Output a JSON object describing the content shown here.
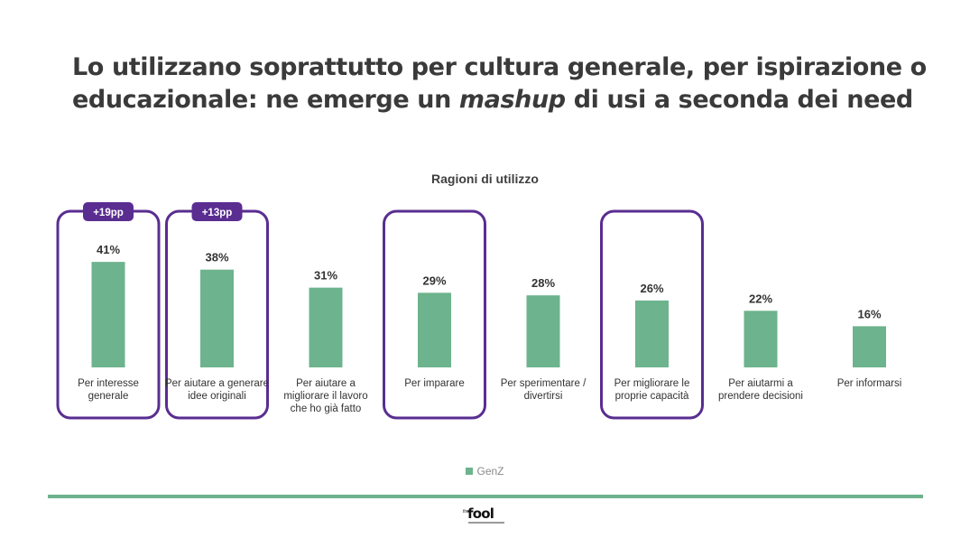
{
  "slide": {
    "title_part1": "Lo utilizzano soprattutto per cultura generale, per ispirazione o educazionale: ne emerge un ",
    "title_emphasis": "mashup",
    "title_part2": " di usi a seconda dei need"
  },
  "logo": {
    "the": "the",
    "name": "fool"
  },
  "colors": {
    "bar": "#6db38d",
    "highlight": "#5a2d91",
    "text": "#333333"
  },
  "chart_data": {
    "type": "bar",
    "title": "Ragioni di utilizzo",
    "categories": [
      "Per interesse generale",
      "Per aiutare a generare idee originali",
      "Per aiutare a migliorare il lavoro che ho già fatto",
      "Per imparare",
      "Per sperimentare / divertirsi",
      "Per migliorare le proprie capacità",
      "Per aiutarmi a prendere decisioni",
      "Per informarsi"
    ],
    "category_lines": [
      [
        "Per interesse",
        "generale"
      ],
      [
        "Per aiutare a generare",
        "idee originali"
      ],
      [
        "Per aiutare a",
        "migliorare il lavoro",
        "che ho già fatto"
      ],
      [
        "Per imparare"
      ],
      [
        "Per sperimentare /",
        "divertirsi"
      ],
      [
        "Per migliorare le",
        "proprie capacità"
      ],
      [
        "Per aiutarmi a",
        "prendere decisioni"
      ],
      [
        "Per informarsi"
      ]
    ],
    "series": [
      {
        "name": "GenZ",
        "values": [
          41,
          38,
          31,
          29,
          28,
          26,
          22,
          16
        ]
      }
    ],
    "value_labels": [
      "41%",
      "38%",
      "31%",
      "29%",
      "28%",
      "26%",
      "22%",
      "16%"
    ],
    "value_unit": "%",
    "highlighted_categories": [
      0,
      1,
      3,
      5
    ],
    "badges": [
      {
        "category": 0,
        "text": "+19pp"
      },
      {
        "category": 1,
        "text": "+13pp"
      }
    ],
    "legend": {
      "position": "bottom"
    },
    "grid": false
  }
}
